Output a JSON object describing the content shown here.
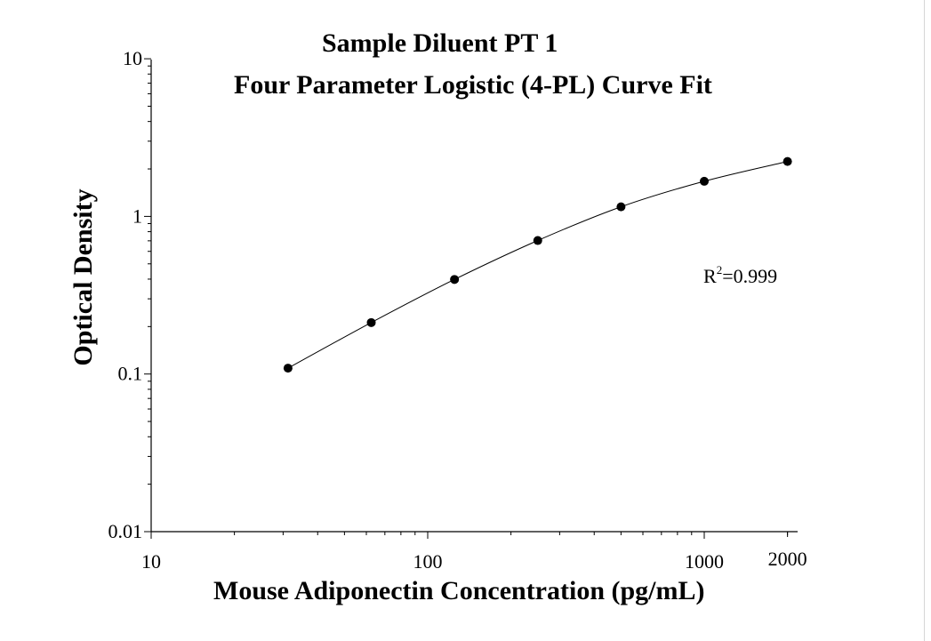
{
  "chart_data": {
    "type": "scatter",
    "title": "Sample Diluent PT 1",
    "subtitle": "Four Parameter Logistic (4-PL) Curve Fit",
    "xlabel": "Mouse Adiponectin Concentration (pg/mL)",
    "ylabel": "Optical Density",
    "x_scale": "log",
    "y_scale": "log",
    "xlim": [
      10,
      2000
    ],
    "ylim": [
      0.01,
      10
    ],
    "x_ticks": [
      {
        "value": 10,
        "label": "10"
      },
      {
        "value": 100,
        "label": "100"
      },
      {
        "value": 1000,
        "label": "1000"
      },
      {
        "value": 2000,
        "label": "2000"
      }
    ],
    "y_ticks": [
      {
        "value": 0.01,
        "label": "0.01"
      },
      {
        "value": 0.1,
        "label": "0.1"
      },
      {
        "value": 1,
        "label": "1"
      },
      {
        "value": 10,
        "label": "10"
      }
    ],
    "grid": false,
    "series": [
      {
        "marker": "filled-circle",
        "color": "#000000",
        "x": [
          31.25,
          62.5,
          125,
          250,
          500,
          1000,
          2000
        ],
        "y": [
          0.109,
          0.212,
          0.398,
          0.703,
          1.15,
          1.67,
          2.23
        ]
      }
    ],
    "fit_curve": {
      "type": "4-PL",
      "color": "#000000"
    },
    "annotation": {
      "base": "R",
      "sup": "2",
      "rest": "=0.999"
    }
  }
}
